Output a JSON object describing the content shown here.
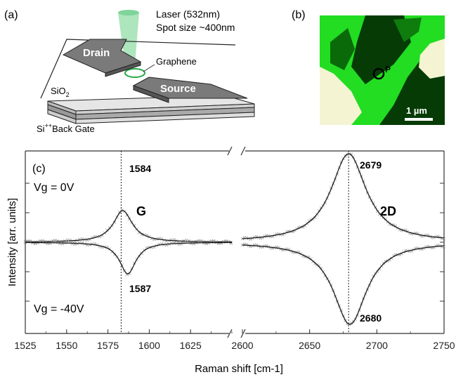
{
  "panel_a": {
    "label": "(a)",
    "laser_line1": "Laser (532nm)",
    "laser_line2": "Spot size ~400nm",
    "drain": "Drain",
    "source": "Source",
    "graphene": "Graphene",
    "sio2_main": "SiO",
    "sio2_sub": "2",
    "gate_pre": "Si",
    "gate_sup": "++",
    "gate_post": "Back Gate"
  },
  "panel_b": {
    "label": "(b)",
    "point_label": "P",
    "scale_bar": "1 µm",
    "colors": {
      "bright_green": "#22dd22",
      "dark_green": "#063b06",
      "cream": "#f4f4d2"
    }
  },
  "panel_c": {
    "label": "(c)",
    "ylabel": "Intensity [arr. units]",
    "xlabel": "Raman shift [cm-1]",
    "vg_top": "Vg = 0V",
    "vg_bottom": "Vg = -40V",
    "g_label": "G",
    "d2_label": "2D",
    "peak_g_top": "1584",
    "peak_g_bottom": "1587",
    "peak_2d_top": "2679",
    "peak_2d_bottom": "2680"
  },
  "chart_data": {
    "type": "line",
    "xlabel": "Raman shift [cm-1]",
    "ylabel": "Intensity [arr. units]",
    "broken_x_axis": true,
    "left_segment": {
      "xlim": [
        1525,
        1650
      ],
      "ticks": [
        "1525",
        "1550",
        "1575",
        "1600",
        "1625"
      ]
    },
    "right_segment": {
      "xlim": [
        2600,
        2750
      ],
      "ticks": [
        "2600",
        "2650",
        "2700",
        "2750"
      ]
    },
    "series": [
      {
        "name": "Vg = 0V",
        "peaks": [
          {
            "band": "G",
            "center": 1584,
            "height": 0.5,
            "hwhm": 7
          },
          {
            "band": "2D",
            "center": 2679,
            "height": 1.4,
            "hwhm": 16
          }
        ]
      },
      {
        "name": "Vg = -40V",
        "peaks": [
          {
            "band": "G",
            "center": 1587,
            "height": 0.5,
            "hwhm": 6
          },
          {
            "band": "2D",
            "center": 2680,
            "height": 1.3,
            "hwhm": 15
          }
        ]
      }
    ],
    "tick_labels": [
      "1525",
      "1550",
      "1575",
      "1600",
      "1625",
      "2600",
      "2650",
      "2700",
      "2750"
    ],
    "vertical_markers": [
      1583,
      2679
    ]
  }
}
